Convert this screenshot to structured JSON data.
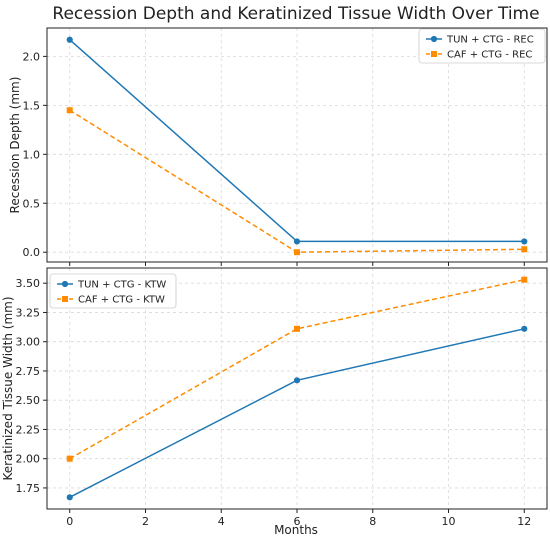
{
  "chart_data": {
    "type": "line",
    "title": "Recession Depth and Keratinized Tissue Width Over Time",
    "xlabel": "Months",
    "x": [
      0,
      6,
      12
    ],
    "xlim": [
      -0.6,
      12.6
    ],
    "xticks": [
      "0",
      "2",
      "4",
      "6",
      "8",
      "10",
      "12"
    ],
    "subplots": [
      {
        "ylabel": "Recession Depth (mm)",
        "ylim": [
          -0.1,
          2.29
        ],
        "yticks": [
          "0.0",
          "0.5",
          "1.0",
          "1.5",
          "2.0"
        ],
        "grid": true,
        "legend_position": "top-right",
        "series": [
          {
            "name": "TUN + CTG - REC",
            "values": [
              2.17,
              0.11,
              0.11
            ],
            "color": "#1f77b4",
            "linestyle": "solid",
            "marker": "circle"
          },
          {
            "name": "CAF + CTG - REC",
            "values": [
              1.45,
              0.0,
              0.03
            ],
            "color": "#ff8c00",
            "linestyle": "dashed",
            "marker": "square"
          }
        ]
      },
      {
        "ylabel": "Keratinized Tissue Width (mm)",
        "ylim": [
          1.57,
          3.63
        ],
        "yticks": [
          "1.75",
          "2.00",
          "2.25",
          "2.50",
          "2.75",
          "3.00",
          "3.25",
          "3.50"
        ],
        "grid": true,
        "legend_position": "top-left",
        "series": [
          {
            "name": "TUN + CTG - KTW",
            "values": [
              1.67,
              2.67,
              3.11
            ],
            "color": "#1f77b4",
            "linestyle": "solid",
            "marker": "circle"
          },
          {
            "name": "CAF + CTG - KTW",
            "values": [
              2.0,
              3.11,
              3.53
            ],
            "color": "#ff8c00",
            "linestyle": "dashed",
            "marker": "square"
          }
        ]
      }
    ]
  }
}
